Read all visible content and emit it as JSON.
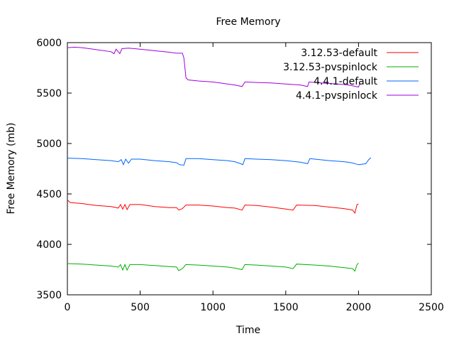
{
  "chart_data": {
    "type": "line",
    "title": "Free Memory",
    "xlabel": "Time",
    "ylabel": "Free Memory (mb)",
    "xlim": [
      0,
      2500
    ],
    "ylim": [
      3500,
      6000
    ],
    "xticks": [
      0,
      500,
      1000,
      1500,
      2000,
      2500
    ],
    "yticks": [
      3500,
      4000,
      4500,
      5000,
      5500,
      6000
    ],
    "grid": false,
    "legend": "top-right",
    "series": [
      {
        "name": "3.12.53-default",
        "color": "#ff0000",
        "points": [
          [
            0,
            4440
          ],
          [
            20,
            4415
          ],
          [
            100,
            4405
          ],
          [
            200,
            4385
          ],
          [
            300,
            4375
          ],
          [
            350,
            4360
          ],
          [
            365,
            4395
          ],
          [
            380,
            4350
          ],
          [
            395,
            4395
          ],
          [
            410,
            4345
          ],
          [
            430,
            4395
          ],
          [
            500,
            4395
          ],
          [
            550,
            4385
          ],
          [
            600,
            4375
          ],
          [
            650,
            4370
          ],
          [
            700,
            4365
          ],
          [
            750,
            4365
          ],
          [
            765,
            4340
          ],
          [
            790,
            4355
          ],
          [
            815,
            4390
          ],
          [
            900,
            4390
          ],
          [
            1000,
            4380
          ],
          [
            1100,
            4365
          ],
          [
            1150,
            4360
          ],
          [
            1200,
            4340
          ],
          [
            1220,
            4390
          ],
          [
            1300,
            4385
          ],
          [
            1400,
            4370
          ],
          [
            1500,
            4350
          ],
          [
            1550,
            4340
          ],
          [
            1575,
            4390
          ],
          [
            1700,
            4385
          ],
          [
            1800,
            4370
          ],
          [
            1900,
            4355
          ],
          [
            1960,
            4340
          ],
          [
            1975,
            4310
          ],
          [
            1990,
            4395
          ],
          [
            2000,
            4400
          ]
        ]
      },
      {
        "name": "3.12.53-pvspinlock",
        "color": "#00b000",
        "points": [
          [
            0,
            3810
          ],
          [
            100,
            3805
          ],
          [
            200,
            3795
          ],
          [
            300,
            3785
          ],
          [
            350,
            3775
          ],
          [
            365,
            3800
          ],
          [
            380,
            3745
          ],
          [
            395,
            3800
          ],
          [
            410,
            3745
          ],
          [
            430,
            3800
          ],
          [
            500,
            3800
          ],
          [
            550,
            3795
          ],
          [
            600,
            3790
          ],
          [
            700,
            3780
          ],
          [
            750,
            3775
          ],
          [
            765,
            3740
          ],
          [
            790,
            3760
          ],
          [
            815,
            3800
          ],
          [
            900,
            3795
          ],
          [
            1000,
            3785
          ],
          [
            1100,
            3775
          ],
          [
            1150,
            3765
          ],
          [
            1200,
            3750
          ],
          [
            1220,
            3800
          ],
          [
            1300,
            3795
          ],
          [
            1400,
            3785
          ],
          [
            1500,
            3775
          ],
          [
            1550,
            3760
          ],
          [
            1575,
            3805
          ],
          [
            1700,
            3795
          ],
          [
            1800,
            3785
          ],
          [
            1900,
            3770
          ],
          [
            1960,
            3760
          ],
          [
            1975,
            3735
          ],
          [
            1990,
            3800
          ],
          [
            2000,
            3815
          ]
        ]
      },
      {
        "name": "4.4.1-default",
        "color": "#0066ff",
        "points": [
          [
            0,
            4855
          ],
          [
            100,
            4850
          ],
          [
            200,
            4840
          ],
          [
            300,
            4830
          ],
          [
            350,
            4820
          ],
          [
            370,
            4840
          ],
          [
            385,
            4790
          ],
          [
            400,
            4845
          ],
          [
            420,
            4805
          ],
          [
            440,
            4845
          ],
          [
            500,
            4845
          ],
          [
            600,
            4830
          ],
          [
            700,
            4820
          ],
          [
            750,
            4810
          ],
          [
            770,
            4790
          ],
          [
            800,
            4785
          ],
          [
            815,
            4850
          ],
          [
            900,
            4850
          ],
          [
            1000,
            4840
          ],
          [
            1100,
            4830
          ],
          [
            1150,
            4820
          ],
          [
            1190,
            4800
          ],
          [
            1205,
            4790
          ],
          [
            1220,
            4850
          ],
          [
            1300,
            4845
          ],
          [
            1400,
            4840
          ],
          [
            1500,
            4830
          ],
          [
            1600,
            4815
          ],
          [
            1650,
            4800
          ],
          [
            1665,
            4850
          ],
          [
            1700,
            4845
          ],
          [
            1800,
            4830
          ],
          [
            1900,
            4820
          ],
          [
            1950,
            4810
          ],
          [
            2000,
            4790
          ],
          [
            2050,
            4800
          ],
          [
            2070,
            4840
          ],
          [
            2085,
            4860
          ]
        ]
      },
      {
        "name": "4.4.1-pvspinlock",
        "color": "#a000e0",
        "points": [
          [
            0,
            5950
          ],
          [
            50,
            5955
          ],
          [
            100,
            5950
          ],
          [
            200,
            5930
          ],
          [
            300,
            5910
          ],
          [
            320,
            5890
          ],
          [
            335,
            5935
          ],
          [
            360,
            5890
          ],
          [
            375,
            5940
          ],
          [
            420,
            5945
          ],
          [
            500,
            5935
          ],
          [
            600,
            5920
          ],
          [
            700,
            5905
          ],
          [
            750,
            5895
          ],
          [
            790,
            5895
          ],
          [
            800,
            5850
          ],
          [
            815,
            5650
          ],
          [
            830,
            5630
          ],
          [
            900,
            5620
          ],
          [
            1000,
            5610
          ],
          [
            1100,
            5590
          ],
          [
            1150,
            5580
          ],
          [
            1200,
            5565
          ],
          [
            1220,
            5610
          ],
          [
            1300,
            5605
          ],
          [
            1400,
            5600
          ],
          [
            1500,
            5590
          ],
          [
            1600,
            5580
          ],
          [
            1650,
            5565
          ],
          [
            1660,
            5610
          ],
          [
            1700,
            5605
          ],
          [
            1800,
            5595
          ],
          [
            1900,
            5585
          ],
          [
            1950,
            5575
          ],
          [
            2000,
            5560
          ],
          [
            2010,
            5600
          ]
        ]
      }
    ]
  }
}
